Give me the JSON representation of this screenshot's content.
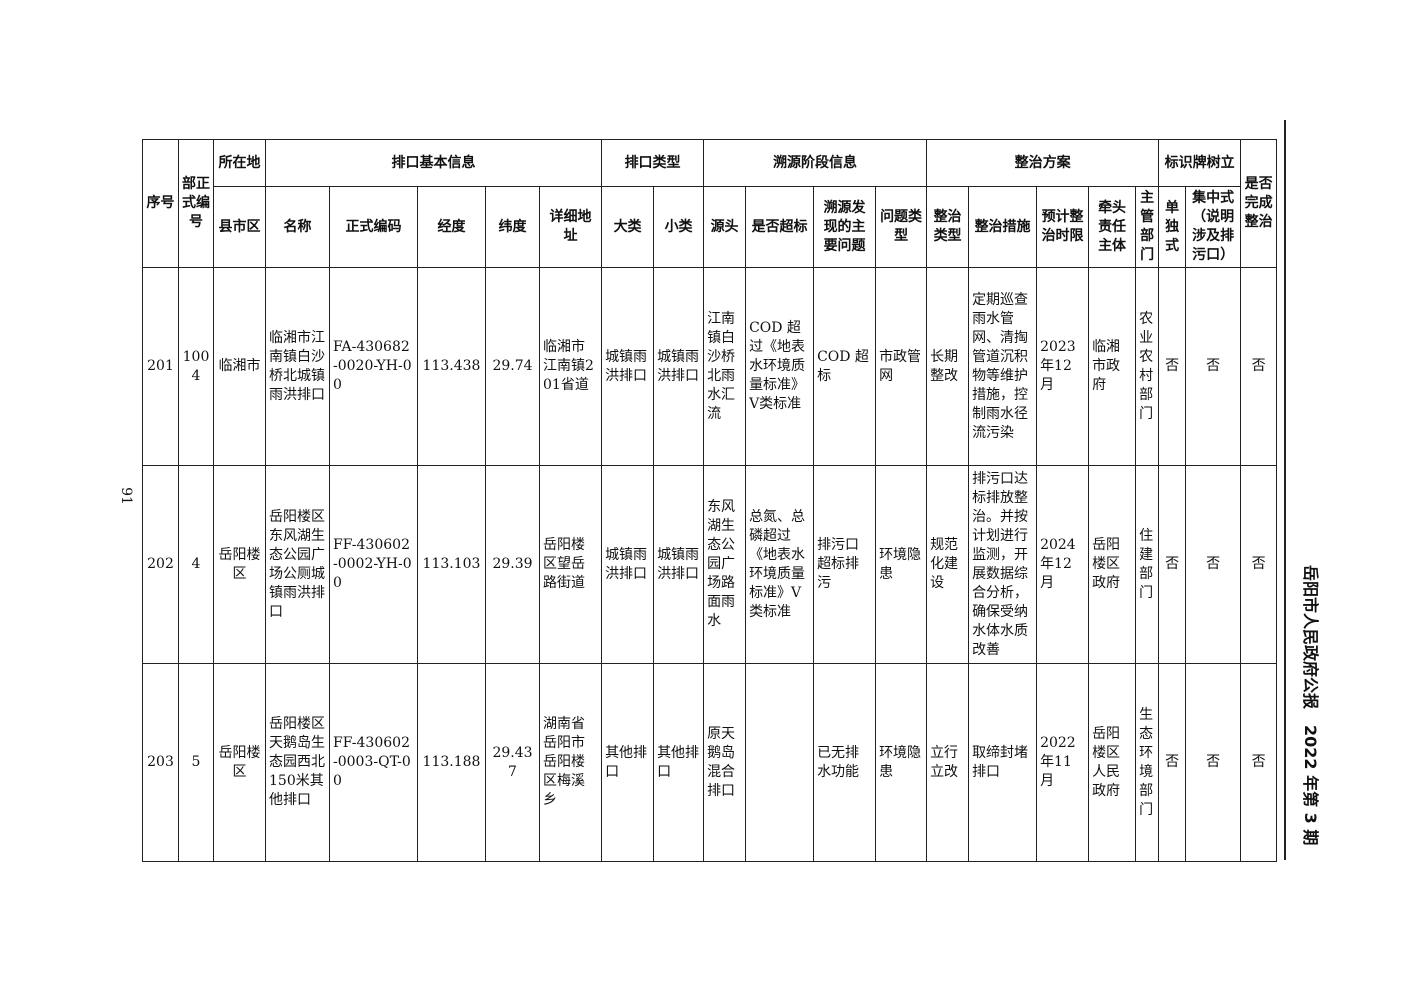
{
  "page_number": "91",
  "running_header": "岳阳市人民政府公报　2022 年第 3 期",
  "header_top": {
    "seq": "序号",
    "dept_code": "部正式编号",
    "location": "所在地",
    "basic_info": "排口基本信息",
    "outlet_type": "排口类型",
    "trace": "溯源阶段信息",
    "plan": "整治方案",
    "sign": "标识牌树立",
    "done": "是否完成整治"
  },
  "header_sub": [
    "县市区",
    "名称",
    "正式编码",
    "经度",
    "纬度",
    "详细地址",
    "大类",
    "小类",
    "源头",
    "是否超标",
    "溯源发现的主要问题",
    "问题类型",
    "整治类型",
    "整治措施",
    "预计整治时限",
    "牵头责任主体",
    "主管部门",
    "单独式",
    "集中式（说明涉及排污口）"
  ],
  "rows": [
    [
      "201",
      "1004",
      "临湘市",
      "临湘市江南镇白沙桥北城镇雨洪排口",
      "FA-430682-0020-YH-00",
      "113.438",
      "29.74",
      "临湘市江南镇201省道",
      "城镇雨洪排口",
      "城镇雨洪排口",
      "江南镇白沙桥北雨水汇流",
      "COD 超过《地表水环境质量标准》V类标准",
      "COD 超标",
      "市政管网",
      "长期整改",
      "定期巡查雨水管网、清掏管道沉积物等维护措施，控制雨水径流污染",
      "2023年12月",
      "临湘市政府",
      "农业农村部门",
      "否",
      "否",
      "否"
    ],
    [
      "202",
      "4",
      "岳阳楼区",
      "岳阳楼区东风湖生态公园广场公厕城镇雨洪排口",
      "FF-430602-0002-YH-00",
      "113.103",
      "29.39",
      "岳阳楼区望岳路街道",
      "城镇雨洪排口",
      "城镇雨洪排口",
      "东风湖生态公园广场路面雨水",
      "总氮、总磷超过《地表水环境质量标准》V类标准",
      "排污口超标排污",
      "环境隐患",
      "规范化建设",
      "排污口达标排放整治。并按计划进行监测，开展数据综合分析，确保受纳水体水质改善",
      "2024年12月",
      "岳阳楼区政府",
      "住建部门",
      "否",
      "否",
      "否"
    ],
    [
      "203",
      "5",
      "岳阳楼区",
      "岳阳楼区天鹅岛生态园西北150米其他排口",
      "FF-430602-0003-QT-00",
      "113.188",
      "29.437",
      "湖南省岳阳市岳阳楼区梅溪乡",
      "其他排口",
      "其他排口",
      "原天鹅岛混合排口",
      "",
      "已无排水功能",
      "环境隐患",
      "立行立改",
      "取缔封堵排口",
      "2022年11月",
      "岳阳楼区人民政府",
      "生态环境部门",
      "否",
      "否",
      "否"
    ]
  ]
}
